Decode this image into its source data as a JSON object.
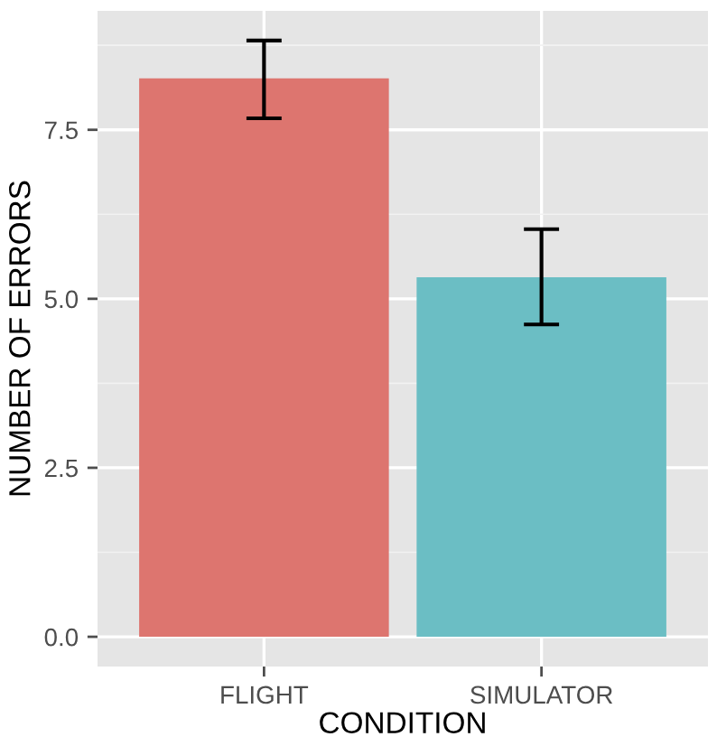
{
  "chart_data": {
    "type": "bar",
    "xlabel": "CONDITION",
    "ylabel": "NUMBER OF ERRORS",
    "categories": [
      "FLIGHT",
      "SIMULATOR"
    ],
    "values": [
      8.26,
      5.32
    ],
    "colors": [
      "#dd756f",
      "#6bbec4"
    ],
    "errors": [
      [
        7.67,
        8.82
      ],
      [
        4.62,
        6.03
      ]
    ],
    "ylim": [
      -0.44,
      9.26
    ],
    "yticks": [
      {
        "value": 0,
        "label": "0.0"
      },
      2.5,
      {
        "value": 5,
        "label": "5.0"
      },
      7.5
    ],
    "grid": true
  }
}
